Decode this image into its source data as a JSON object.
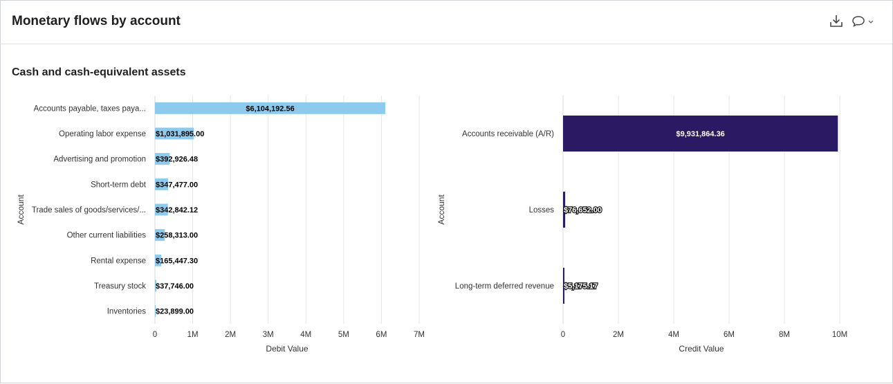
{
  "header": {
    "title": "Monetary flows by account",
    "download_icon": "download-icon",
    "comment_icon": "comment-icon",
    "chevron_icon": "chevron-down-icon"
  },
  "section": {
    "title": "Cash and cash-equivalent assets"
  },
  "colors": {
    "debit": "#8ccbee",
    "credit": "#2a1a63"
  },
  "chart_data": [
    {
      "type": "bar",
      "orientation": "horizontal",
      "categories": [
        "Accounts payable, taxes paya...",
        "Operating labor expense",
        "Advertising and promotion",
        "Short-term debt",
        "Trade sales of goods/services/...",
        "Other current liabilities",
        "Rental expense",
        "Treasury stock",
        "Inventories"
      ],
      "values": [
        6104192.56,
        1031895.0,
        392926.48,
        347477.0,
        342842.12,
        258313.0,
        165447.3,
        37746.0,
        23899.0
      ],
      "data_labels": [
        "$6,104,192.56",
        "$1,031,895.00",
        "$392,926.48",
        "$347,477.00",
        "$342,842.12",
        "$258,313.00",
        "$165,447.30",
        "$37,746.00",
        "$23,899.00"
      ],
      "xlabel": "Debit Value",
      "ylabel": "Account",
      "xlim": [
        0,
        7000000
      ],
      "xticks": [
        "0",
        "1M",
        "2M",
        "3M",
        "4M",
        "5M",
        "6M",
        "7M"
      ],
      "grid": true
    },
    {
      "type": "bar",
      "orientation": "horizontal",
      "categories": [
        "Accounts receivable (A/R)",
        "Losses",
        "Long-term deferred revenue"
      ],
      "values": [
        9931864.36,
        76652.0,
        5175.17
      ],
      "data_labels": [
        "$9,931,864.36",
        "$76,652.00",
        "$5,175.17"
      ],
      "xlabel": "Credit Value",
      "ylabel": "Account",
      "xlim": [
        0,
        10000000
      ],
      "xticks": [
        "0",
        "2M",
        "4M",
        "6M",
        "8M",
        "10M"
      ],
      "grid": true
    }
  ]
}
